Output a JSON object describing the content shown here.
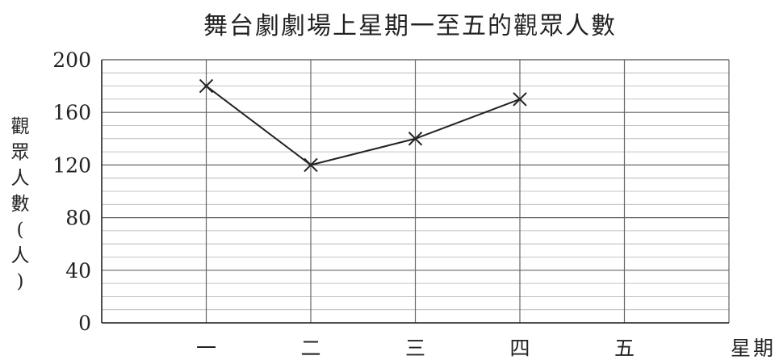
{
  "chart_data": {
    "type": "line",
    "title": "舞台劇劇場上星期一至五的觀眾人數",
    "ylabel": "觀眾人數(人)",
    "xlabel": "星期",
    "categories": [
      "一",
      "二",
      "三",
      "四",
      "五"
    ],
    "y_ticks": [
      "0",
      "40",
      "80",
      "120",
      "160",
      "200"
    ],
    "ylim": [
      0,
      200
    ],
    "y_minor_step": 10,
    "grid": true,
    "marker": "x",
    "series": [
      {
        "values": [
          180,
          120,
          140,
          170,
          null
        ]
      }
    ],
    "colors": {
      "line": "#222222",
      "grid_major": "#666666",
      "grid_minor": "#b0b0b0",
      "axis": "#222222"
    }
  }
}
